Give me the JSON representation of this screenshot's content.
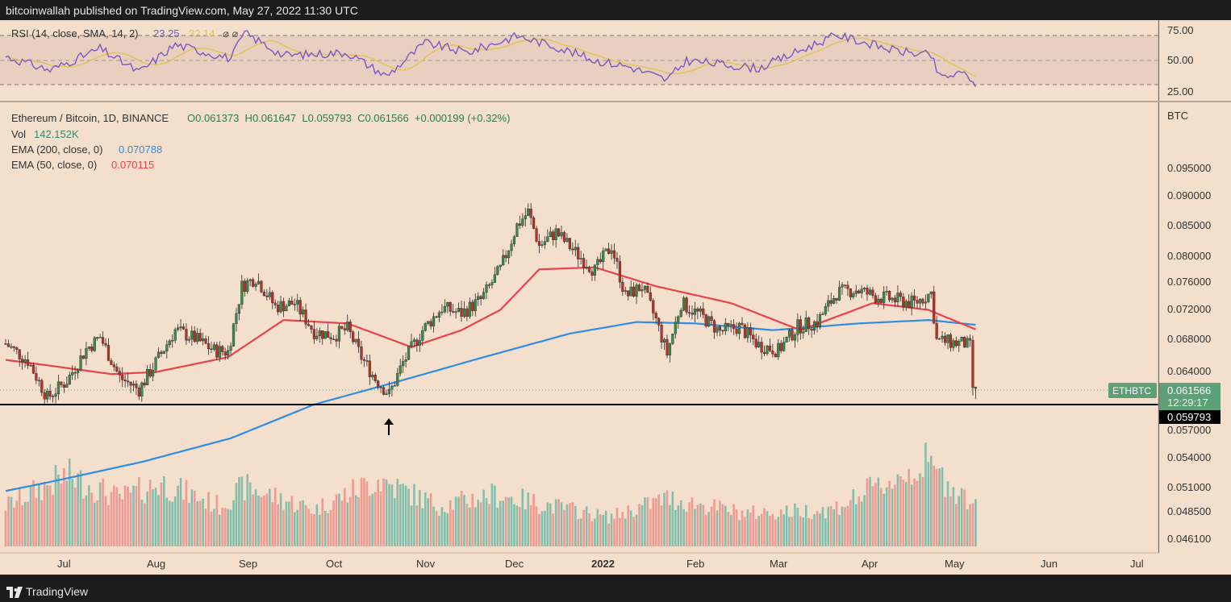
{
  "header": {
    "published_text": "bitcoinwallah published on TradingView.com, May 27, 2022 11:30 UTC"
  },
  "footer": {
    "brand": "TradingView"
  },
  "colors": {
    "background": "#f3dfcb",
    "up_candle": "#3b8a4b",
    "down_candle": "#b8322a",
    "ema200": "#2f8de4",
    "ema50": "#e8434d",
    "rsi_line": "#7e57c2",
    "rsi_sma": "#e3c35a",
    "vol_up": "#84bfae",
    "vol_down": "#ef9a92",
    "rsi_band": "#e8cfc0",
    "support": "#000000"
  },
  "rsi_pane": {
    "legend_name": "RSI (14, close, SMA, 14, 2)",
    "legend_rsi_value": "23.25",
    "legend_sma_value": "32.14",
    "legend_symbols": "⌀ ⌀",
    "ticks": [
      "75.00",
      "50.00",
      "25.00"
    ]
  },
  "main_pane": {
    "legend_symbol": "Ethereum / Bitcoin, 1D, BINANCE",
    "legend_ohlc": "O0.061373  H0.061647  L0.059793  C0.061566  +0.000199 (+0.32%)",
    "vol_label": "Vol",
    "vol_value": "142.152K",
    "ema200_label": "EMA (200, close, 0)",
    "ema200_value": "0.070788",
    "ema50_label": "EMA (50, close, 0)",
    "ema50_value": "0.070115",
    "unit": "BTC",
    "price_ticks": [
      "0.095000",
      "0.090000",
      "0.085000",
      "0.080000",
      "0.076000",
      "0.072000",
      "0.068000",
      "0.064000",
      "0.057000",
      "0.054000",
      "0.051000",
      "0.048500",
      "0.046100"
    ],
    "symbol_tag": "ETHBTC",
    "last_price": "0.061566",
    "countdown": "12:29:17",
    "support_price": "0.059793"
  },
  "time_axis": {
    "labels": [
      "Jul",
      "Aug",
      "Sep",
      "Oct",
      "Nov",
      "Dec",
      "2022",
      "Feb",
      "Mar",
      "Apr",
      "May",
      "Jun",
      "Jul"
    ]
  },
  "chart_data": {
    "type": "candlestick",
    "title": "Ethereum / Bitcoin, 1D, BINANCE",
    "unit": "BTC",
    "x_range": [
      "2021-06-12",
      "2022-07-28"
    ],
    "price_axis_ticks": [
      0.095,
      0.09,
      0.085,
      0.08,
      0.076,
      0.072,
      0.068,
      0.064,
      0.057,
      0.054,
      0.051,
      0.0485,
      0.0461
    ],
    "close_path": [
      {
        "date": "2021-06-12",
        "close": 0.068
      },
      {
        "date": "2021-06-20",
        "close": 0.0655
      },
      {
        "date": "2021-06-27",
        "close": 0.06
      },
      {
        "date": "2021-07-04",
        "close": 0.0625
      },
      {
        "date": "2021-07-11",
        "close": 0.0672
      },
      {
        "date": "2021-07-16",
        "close": 0.069
      },
      {
        "date": "2021-07-23",
        "close": 0.063
      },
      {
        "date": "2021-07-30",
        "close": 0.0612
      },
      {
        "date": "2021-08-05",
        "close": 0.0652
      },
      {
        "date": "2021-08-12",
        "close": 0.07
      },
      {
        "date": "2021-08-19",
        "close": 0.0688
      },
      {
        "date": "2021-08-26",
        "close": 0.067
      },
      {
        "date": "2021-08-31",
        "close": 0.0668
      },
      {
        "date": "2021-09-05",
        "close": 0.0765
      },
      {
        "date": "2021-09-10",
        "close": 0.0778
      },
      {
        "date": "2021-09-17",
        "close": 0.0735
      },
      {
        "date": "2021-09-24",
        "close": 0.074
      },
      {
        "date": "2021-10-01",
        "close": 0.0698
      },
      {
        "date": "2021-10-08",
        "close": 0.0692
      },
      {
        "date": "2021-10-13",
        "close": 0.0702
      },
      {
        "date": "2021-10-18",
        "close": 0.066
      },
      {
        "date": "2021-10-23",
        "close": 0.0628
      },
      {
        "date": "2021-10-28",
        "close": 0.0605
      },
      {
        "date": "2021-11-02",
        "close": 0.0652
      },
      {
        "date": "2021-11-09",
        "close": 0.07
      },
      {
        "date": "2021-11-16",
        "close": 0.0733
      },
      {
        "date": "2021-11-23",
        "close": 0.0725
      },
      {
        "date": "2021-11-30",
        "close": 0.0745
      },
      {
        "date": "2021-12-07",
        "close": 0.079
      },
      {
        "date": "2021-12-13",
        "close": 0.0855
      },
      {
        "date": "2021-12-17",
        "close": 0.0875
      },
      {
        "date": "2021-12-21",
        "close": 0.0825
      },
      {
        "date": "2021-12-27",
        "close": 0.0845
      },
      {
        "date": "2022-01-03",
        "close": 0.0815
      },
      {
        "date": "2022-01-10",
        "close": 0.0788
      },
      {
        "date": "2022-01-16",
        "close": 0.0825
      },
      {
        "date": "2022-01-21",
        "close": 0.075
      },
      {
        "date": "2022-01-27",
        "close": 0.0765
      },
      {
        "date": "2022-02-01",
        "close": 0.0715
      },
      {
        "date": "2022-02-05",
        "close": 0.0665
      },
      {
        "date": "2022-02-10",
        "close": 0.074
      },
      {
        "date": "2022-02-17",
        "close": 0.0722
      },
      {
        "date": "2022-02-24",
        "close": 0.0698
      },
      {
        "date": "2022-03-03",
        "close": 0.0705
      },
      {
        "date": "2022-03-10",
        "close": 0.0678
      },
      {
        "date": "2022-03-17",
        "close": 0.067
      },
      {
        "date": "2022-03-24",
        "close": 0.0705
      },
      {
        "date": "2022-03-31",
        "close": 0.0712
      },
      {
        "date": "2022-04-07",
        "close": 0.0755
      },
      {
        "date": "2022-04-14",
        "close": 0.076
      },
      {
        "date": "2022-04-21",
        "close": 0.075
      },
      {
        "date": "2022-04-28",
        "close": 0.0745
      },
      {
        "date": "2022-05-05",
        "close": 0.074
      },
      {
        "date": "2022-05-11",
        "close": 0.0755
      },
      {
        "date": "2022-05-13",
        "close": 0.0685
      },
      {
        "date": "2022-05-18",
        "close": 0.0682
      },
      {
        "date": "2022-05-23",
        "close": 0.068
      },
      {
        "date": "2022-05-25",
        "close": 0.0675
      },
      {
        "date": "2022-05-26",
        "close": 0.0615
      },
      {
        "date": "2022-05-27",
        "close": 0.061566
      }
    ],
    "last_candle": {
      "date": "2022-05-27",
      "open": 0.061373,
      "high": 0.061647,
      "low": 0.059793,
      "close": 0.061566
    },
    "ema200": [
      {
        "date": "2021-06-12",
        "value": 0.0462
      },
      {
        "date": "2021-07-01",
        "value": 0.0478
      },
      {
        "date": "2021-07-31",
        "value": 0.0505
      },
      {
        "date": "2021-09-01",
        "value": 0.054
      },
      {
        "date": "2021-10-01",
        "value": 0.059
      },
      {
        "date": "2021-11-01",
        "value": 0.0625
      },
      {
        "date": "2021-12-01",
        "value": 0.066
      },
      {
        "date": "2022-01-01",
        "value": 0.0695
      },
      {
        "date": "2022-01-25",
        "value": 0.0712
      },
      {
        "date": "2022-02-15",
        "value": 0.071
      },
      {
        "date": "2022-03-15",
        "value": 0.07
      },
      {
        "date": "2022-04-15",
        "value": 0.071
      },
      {
        "date": "2022-05-10",
        "value": 0.0715
      },
      {
        "date": "2022-05-27",
        "value": 0.070788
      }
    ],
    "ema50": [
      {
        "date": "2021-06-12",
        "value": 0.0656
      },
      {
        "date": "2021-06-27",
        "value": 0.0648
      },
      {
        "date": "2021-07-20",
        "value": 0.0635
      },
      {
        "date": "2021-08-05",
        "value": 0.0638
      },
      {
        "date": "2021-08-31",
        "value": 0.066
      },
      {
        "date": "2021-09-20",
        "value": 0.0715
      },
      {
        "date": "2021-10-13",
        "value": 0.071
      },
      {
        "date": "2021-11-05",
        "value": 0.0675
      },
      {
        "date": "2021-11-23",
        "value": 0.07
      },
      {
        "date": "2021-12-07",
        "value": 0.073
      },
      {
        "date": "2021-12-21",
        "value": 0.079
      },
      {
        "date": "2022-01-10",
        "value": 0.0793
      },
      {
        "date": "2022-02-01",
        "value": 0.0765
      },
      {
        "date": "2022-02-28",
        "value": 0.074
      },
      {
        "date": "2022-03-25",
        "value": 0.07
      },
      {
        "date": "2022-04-20",
        "value": 0.074
      },
      {
        "date": "2022-05-10",
        "value": 0.073
      },
      {
        "date": "2022-05-27",
        "value": 0.070115
      }
    ],
    "volume_axis_ticks": [
      0.057,
      0.054,
      0.051,
      0.0485,
      0.0461
    ],
    "volume_pattern": [
      {
        "date": "2021-06-12",
        "level": 0.45
      },
      {
        "date": "2021-07-04",
        "level": 0.85
      },
      {
        "date": "2021-07-23",
        "level": 0.55
      },
      {
        "date": "2021-08-07",
        "level": 0.75
      },
      {
        "date": "2021-08-28",
        "level": 0.45
      },
      {
        "date": "2021-09-06",
        "level": 0.7
      },
      {
        "date": "2021-10-01",
        "level": 0.4
      },
      {
        "date": "2021-10-24",
        "level": 0.8
      },
      {
        "date": "2021-11-15",
        "level": 0.45
      },
      {
        "date": "2021-12-05",
        "level": 0.6
      },
      {
        "date": "2022-01-15",
        "level": 0.3
      },
      {
        "date": "2022-02-05",
        "level": 0.55
      },
      {
        "date": "2022-03-05",
        "level": 0.35
      },
      {
        "date": "2022-04-05",
        "level": 0.4
      },
      {
        "date": "2022-05-09",
        "level": 1.0
      },
      {
        "date": "2022-05-27",
        "level": 0.45
      }
    ],
    "rsi": {
      "levels": [
        70,
        50,
        30
      ],
      "ticks": [
        75,
        50,
        25
      ],
      "last": 23.25,
      "sma_last": 32.14,
      "path": [
        {
          "date": "2021-06-12",
          "value": 54
        },
        {
          "date": "2021-06-28",
          "value": 40
        },
        {
          "date": "2021-07-16",
          "value": 62
        },
        {
          "date": "2021-07-30",
          "value": 38
        },
        {
          "date": "2021-08-12",
          "value": 66
        },
        {
          "date": "2021-09-01",
          "value": 52
        },
        {
          "date": "2021-09-06",
          "value": 78
        },
        {
          "date": "2021-09-20",
          "value": 55
        },
        {
          "date": "2021-10-13",
          "value": 58
        },
        {
          "date": "2021-10-27",
          "value": 34
        },
        {
          "date": "2021-11-10",
          "value": 68
        },
        {
          "date": "2021-11-25",
          "value": 58
        },
        {
          "date": "2021-12-13",
          "value": 75
        },
        {
          "date": "2021-12-27",
          "value": 64
        },
        {
          "date": "2022-01-10",
          "value": 50
        },
        {
          "date": "2022-01-22",
          "value": 44
        },
        {
          "date": "2022-02-05",
          "value": 30
        },
        {
          "date": "2022-02-12",
          "value": 50
        },
        {
          "date": "2022-03-10",
          "value": 42
        },
        {
          "date": "2022-04-07",
          "value": 76
        },
        {
          "date": "2022-04-28",
          "value": 60
        },
        {
          "date": "2022-05-11",
          "value": 55
        },
        {
          "date": "2022-05-14",
          "value": 33
        },
        {
          "date": "2022-05-24",
          "value": 37
        },
        {
          "date": "2022-05-27",
          "value": 23.25
        }
      ]
    },
    "support_level": 0.059793,
    "annotations": [
      {
        "type": "arrow-up",
        "date": "2021-10-23",
        "price": 0.0595
      }
    ]
  }
}
